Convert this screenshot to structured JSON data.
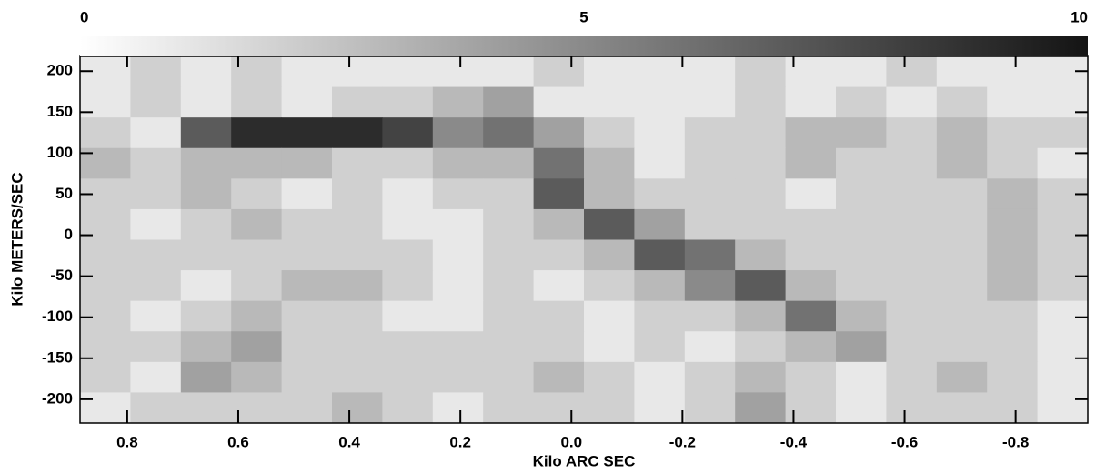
{
  "chart_data": {
    "type": "heatmap",
    "x_label": "Kilo ARC SEC",
    "y_label": "Kilo METERS/SEC",
    "xlim": [
      0.885,
      -0.93
    ],
    "xticks": [
      0.8,
      0.6,
      0.4,
      0.2,
      {
        "value": 0,
        "label": "0.0"
      },
      -0.2,
      -0.4,
      -0.6,
      -0.8
    ],
    "ylim": [
      -229,
      218
    ],
    "yticks": [
      200,
      150,
      100,
      50,
      0,
      -50,
      -100,
      -150,
      -200
    ],
    "clim": [
      0,
      10
    ],
    "cticks": [
      0,
      5,
      10
    ],
    "colormap": [
      "#ffffff",
      "#141414"
    ],
    "z": [
      [
        1,
        2,
        1,
        2,
        1,
        1,
        1,
        1,
        1,
        2,
        1,
        1,
        1,
        2,
        1,
        1,
        2,
        1,
        1,
        1
      ],
      [
        1,
        2,
        1,
        2,
        1,
        2,
        2,
        3,
        4,
        1,
        1,
        1,
        1,
        2,
        1,
        2,
        1,
        2,
        1,
        1
      ],
      [
        2,
        1,
        7,
        9,
        9,
        9,
        8,
        5,
        6,
        4,
        2,
        1,
        2,
        2,
        3,
        3,
        2,
        3,
        2,
        2
      ],
      [
        3,
        2,
        3,
        3,
        3,
        2,
        2,
        3,
        3,
        6,
        3,
        1,
        2,
        2,
        3,
        2,
        2,
        3,
        2,
        1
      ],
      [
        2,
        2,
        3,
        2,
        1,
        2,
        1,
        2,
        2,
        7,
        3,
        2,
        2,
        2,
        1,
        2,
        2,
        2,
        3,
        2
      ],
      [
        2,
        1,
        2,
        3,
        2,
        2,
        1,
        1,
        2,
        3,
        7,
        4,
        2,
        2,
        2,
        2,
        2,
        2,
        3,
        2
      ],
      [
        2,
        2,
        2,
        2,
        2,
        2,
        2,
        1,
        2,
        2,
        3,
        7,
        6,
        3,
        2,
        2,
        2,
        2,
        3,
        2
      ],
      [
        2,
        2,
        1,
        2,
        3,
        3,
        2,
        1,
        2,
        1,
        2,
        3,
        5,
        7,
        3,
        2,
        2,
        2,
        3,
        2
      ],
      [
        2,
        1,
        2,
        3,
        2,
        2,
        1,
        1,
        2,
        2,
        1,
        2,
        2,
        3,
        6,
        3,
        2,
        2,
        2,
        1
      ],
      [
        2,
        2,
        3,
        4,
        2,
        2,
        2,
        2,
        2,
        2,
        1,
        2,
        1,
        2,
        3,
        4,
        2,
        2,
        2,
        1
      ],
      [
        2,
        1,
        4,
        3,
        2,
        2,
        2,
        2,
        2,
        3,
        2,
        1,
        2,
        3,
        2,
        1,
        2,
        3,
        2,
        1
      ],
      [
        1,
        2,
        2,
        2,
        2,
        3,
        2,
        1,
        2,
        2,
        2,
        1,
        2,
        4,
        2,
        1,
        2,
        2,
        2,
        1
      ]
    ]
  }
}
